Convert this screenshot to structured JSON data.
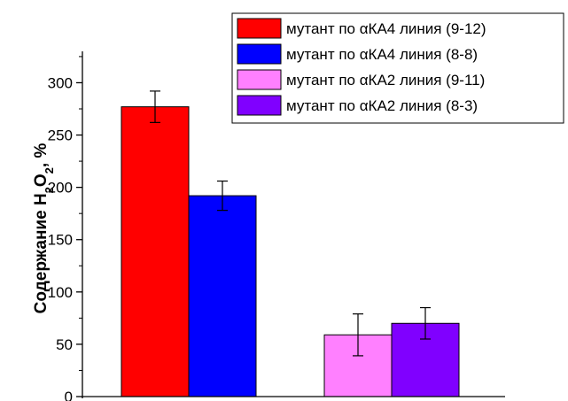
{
  "chart_data": {
    "type": "bar",
    "title": "",
    "xlabel": "",
    "ylabel": {
      "prefix": "Содержание H",
      "sub1": "2",
      "mid": "O",
      "sub2": "2",
      "suffix": ", %"
    },
    "ylim": [
      0,
      330
    ],
    "yticks": [
      0,
      50,
      100,
      150,
      200,
      250,
      300
    ],
    "grid": false,
    "legend_position": "top-right",
    "series": [
      {
        "name": "мутант по αКА4 линия (9-12)",
        "color": "#ff0000",
        "value": 277,
        "error": 15
      },
      {
        "name": "мутант по αКА4 линия (8-8)",
        "color": "#0000ff",
        "value": 192,
        "error": 14
      },
      {
        "name": "мутант по αКА2 линия (9-11)",
        "color": "#ff80ff",
        "value": 59,
        "error": 20
      },
      {
        "name": "мутант по αКА2 линия (8-3)",
        "color": "#8000ff",
        "value": 70,
        "error": 15
      }
    ]
  }
}
